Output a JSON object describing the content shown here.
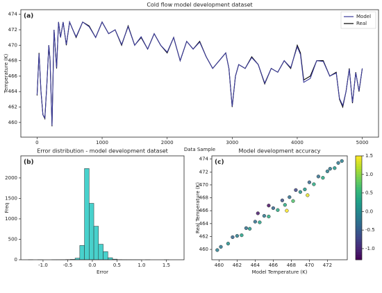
{
  "chart_data": [
    {
      "type": "line",
      "title": "Cold flow model development dataset",
      "annotation": "(a)",
      "xlabel": "Data Sample",
      "ylabel": "Temperature (K)",
      "x": [
        0,
        30,
        60,
        90,
        120,
        150,
        180,
        200,
        230,
        260,
        300,
        330,
        360,
        400,
        450,
        500,
        550,
        600,
        700,
        800,
        900,
        1000,
        1100,
        1200,
        1300,
        1400,
        1500,
        1600,
        1700,
        1800,
        1900,
        2000,
        2100,
        2200,
        2300,
        2400,
        2500,
        2600,
        2700,
        2800,
        2900,
        2950,
        3000,
        3050,
        3100,
        3200,
        3300,
        3400,
        3500,
        3600,
        3700,
        3800,
        3900,
        4000,
        4050,
        4100,
        4200,
        4300,
        4400,
        4500,
        4600,
        4650,
        4700,
        4750,
        4800,
        4850,
        4900,
        4950,
        5000
      ],
      "series": [
        {
          "name": "Model",
          "color": "#3a3a9a",
          "values": [
            463.6,
            468.9,
            464.1,
            461,
            460.6,
            465,
            470,
            468.1,
            459.6,
            472,
            467.1,
            473,
            471,
            473,
            470.1,
            473,
            472,
            471.1,
            473,
            472.4,
            471,
            473,
            471.5,
            472,
            470.1,
            472.4,
            470,
            471.1,
            469.5,
            471.5,
            470,
            469.1,
            471,
            468,
            470.5,
            469.5,
            470.4,
            468.5,
            467,
            468,
            469,
            467,
            462.1,
            466,
            467.5,
            467,
            468.4,
            467.5,
            465.1,
            467,
            466.5,
            468,
            467.1,
            469.8,
            468.8,
            465.2,
            465.7,
            468,
            467.9,
            466,
            466.4,
            463.1,
            462.2,
            464,
            466.9,
            462.6,
            466.4,
            464.1,
            467
          ]
        },
        {
          "name": "Real",
          "color": "#000000",
          "values": [
            463.5,
            469,
            464,
            461,
            460.5,
            465,
            470,
            468,
            459.5,
            472,
            467,
            473,
            471,
            473,
            470,
            473,
            472,
            471,
            473,
            472.5,
            471,
            473,
            471.5,
            472,
            470,
            472.5,
            470,
            471,
            469.5,
            471.5,
            470,
            469,
            471,
            468,
            470.5,
            469.5,
            470.5,
            468.5,
            467,
            468,
            469,
            467,
            462,
            466,
            467.5,
            467,
            468.5,
            467.5,
            465,
            467,
            466.5,
            468,
            467,
            470,
            469,
            465.5,
            466,
            468,
            468,
            466,
            466.5,
            463,
            462,
            464,
            467,
            462.5,
            466.5,
            464,
            467
          ]
        }
      ],
      "xlim": [
        -250,
        5250
      ],
      "ylim": [
        458.1,
        474.6
      ],
      "xticks": [
        0,
        1000,
        2000,
        3000,
        4000,
        5000
      ],
      "yticks": [
        460,
        462,
        464,
        466,
        468,
        470,
        472,
        474
      ],
      "legend": "upper right"
    },
    {
      "type": "histogram",
      "title": "Error distribution - model development dataset",
      "annotation": "(b)",
      "xlabel": "Error",
      "ylabel": "Freq",
      "bins": [
        -1.3,
        -1.205,
        -1.11,
        -1.015,
        -0.92,
        -0.825,
        -0.73,
        -0.635,
        -0.54,
        -0.445,
        -0.35,
        -0.255,
        -0.16,
        -0.065,
        0.03,
        0.125,
        0.22,
        0.315,
        0.41,
        0.505,
        0.6,
        0.695,
        0.79,
        0.885,
        0.98,
        1.075,
        1.17,
        1.265,
        1.36,
        1.455,
        1.55
      ],
      "values": [
        2,
        0,
        1,
        0,
        0,
        1,
        2,
        3,
        6,
        10,
        40,
        350,
        2230,
        1380,
        820,
        380,
        200,
        50,
        15,
        5,
        3,
        2,
        1,
        1,
        0,
        1,
        0,
        0,
        0,
        1
      ],
      "color": "#48d1cc",
      "edgecolor": "#2b2b2b",
      "xlim": [
        -1.45,
        1.86
      ],
      "ylim": [
        0,
        2540
      ],
      "xticks": [
        {
          "value": -1,
          "label": "-1.0"
        },
        -0.5,
        {
          "value": 0,
          "label": "0.0"
        },
        0.5,
        {
          "value": 1,
          "label": "1.0"
        },
        1.5
      ],
      "yticks": [
        0,
        500,
        1000,
        1500,
        2000
      ]
    },
    {
      "type": "scatter",
      "title": "Model development accuracy",
      "annotation": "(c)",
      "xlabel": "Model Temperature (K)",
      "ylabel": "Real Temperature (K)",
      "x": [
        459.8,
        460.2,
        461,
        461.5,
        462,
        462.5,
        463,
        463.4,
        464,
        464.5,
        465,
        465.5,
        466,
        466.5,
        467,
        467.3,
        467.8,
        468.2,
        468.5,
        469,
        469.5,
        470,
        470.5,
        471,
        471.5,
        472,
        472.3,
        472.8,
        473.2,
        473.6,
        467.5,
        465.5,
        469.8,
        464.3
      ],
      "values": [
        459.9,
        460.4,
        460.9,
        461.9,
        462.1,
        462.2,
        463.3,
        463.2,
        464.3,
        464.2,
        465.2,
        465.1,
        466.4,
        466.1,
        467.6,
        466.9,
        468.1,
        467.5,
        469.2,
        468.9,
        469.3,
        470.4,
        470.1,
        471.3,
        471.1,
        472.1,
        472.5,
        472.6,
        473.4,
        473.7,
        466,
        466.8,
        468.4,
        465.6
      ],
      "c": [
        -0.1,
        -0.2,
        0.1,
        -0.4,
        -0.1,
        0.3,
        -0.3,
        0.2,
        -0.3,
        0.3,
        -0.2,
        0.4,
        -0.4,
        0.4,
        -0.6,
        0.4,
        -0.3,
        0.7,
        -0.7,
        0.1,
        0.2,
        -0.4,
        0.4,
        -0.3,
        0.4,
        -0.1,
        -0.2,
        0.2,
        -0.2,
        -0.1,
        1.5,
        -1.2,
        1.4,
        -1.1
      ],
      "colormap": "viridis",
      "edgecolor": "#333333",
      "clim": [
        -1.3,
        1.5
      ],
      "cticks": [
        {
          "value": -1,
          "label": "-1.0"
        },
        -0.5,
        {
          "value": 0,
          "label": "0.0"
        },
        0.5,
        {
          "value": 1,
          "label": "1.0"
        },
        1.5
      ],
      "xlim": [
        459.2,
        474.2
      ],
      "ylim": [
        458.4,
        474.5
      ],
      "xticks": [
        460,
        462,
        464,
        466,
        468,
        470,
        472
      ],
      "yticks": [
        460,
        462,
        464,
        466,
        468,
        470,
        472,
        474
      ]
    }
  ]
}
